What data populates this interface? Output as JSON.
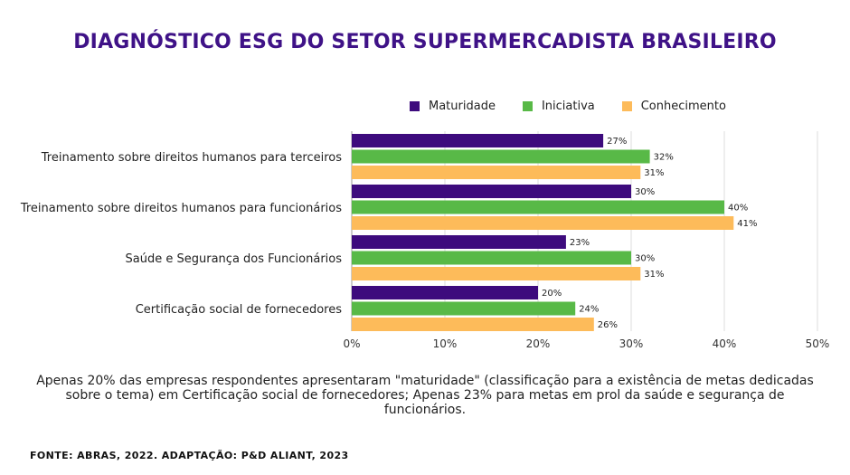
{
  "title": "DIAGNÓSTICO ESG DO SETOR SUPERMERCADISTA BRASILEIRO",
  "note": "Apenas 20% das empresas respondentes apresentaram \"maturidade\" (classificação para a existência de metas dedicadas sobre o tema) em Certificação social de fornecedores; Apenas 23% para metas em prol da saúde e segurança de funcionários.",
  "source": "FONTE: ABRAS, 2022. ADAPTAÇÃO: P&D ALIANT, 2023",
  "chart_data": {
    "type": "bar",
    "orientation": "horizontal",
    "categories": [
      "Treinamento sobre direitos humanos para terceiros",
      "Treinamento sobre direitos humanos para funcionários",
      "Saúde e Segurança dos Funcionários",
      "Certificação social de fornecedores"
    ],
    "series": [
      {
        "name": "Maturidade",
        "color": "#3d0b7d",
        "values": [
          27,
          30,
          23,
          20
        ]
      },
      {
        "name": "Iniciativa",
        "color": "#58b947",
        "values": [
          32,
          40,
          30,
          24
        ]
      },
      {
        "name": "Conhecimento",
        "color": "#fdbb5a",
        "values": [
          31,
          41,
          31,
          26
        ]
      }
    ],
    "xlim": [
      0,
      50
    ],
    "xticks": [
      0,
      10,
      20,
      30,
      40,
      50
    ],
    "tick_format": "percent",
    "value_labels": true,
    "grid": "vertical",
    "legend": "top"
  }
}
